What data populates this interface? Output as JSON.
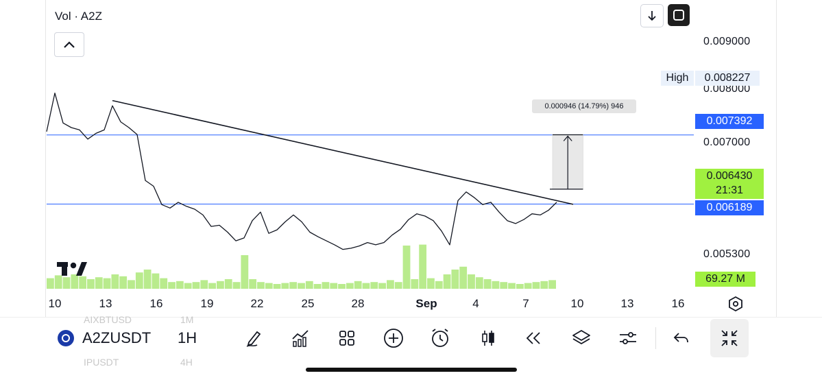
{
  "indicator": {
    "title": "Vol · A2Z"
  },
  "icons": {
    "collapse": "chevron-up-icon",
    "download": "arrow-down-icon",
    "fullscreen": "fullscreen-icon",
    "logo": "tradingview-logo-icon",
    "axis_settings": "axis-settings-icon"
  },
  "chart_data": {
    "type": "line",
    "symbol": "A2ZUSDT",
    "interval": "1H",
    "x_ticks": [
      "10",
      "13",
      "16",
      "19",
      "22",
      "25",
      "28",
      "Sep",
      "4",
      "7",
      "10",
      "13",
      "16"
    ],
    "y_ticks": [
      "0.009000",
      "0.008000",
      "0.007000",
      "0.005300"
    ],
    "ylim": [
      0.0051,
      0.0094
    ],
    "price_path": {
      "x": [
        0,
        1,
        2,
        3,
        4,
        5,
        6,
        7,
        8,
        9,
        10,
        11,
        12,
        13,
        14,
        15,
        16,
        17,
        18,
        19,
        20,
        21,
        22,
        23,
        24,
        25,
        26,
        27,
        28,
        29,
        30,
        31,
        32,
        33,
        34,
        35,
        36,
        37,
        38,
        39,
        40,
        41,
        42,
        43,
        44,
        45,
        46,
        47,
        48,
        49,
        50,
        51,
        52,
        53,
        54,
        55,
        56,
        57,
        58,
        59,
        60,
        61,
        62
      ],
      "y": [
        0.00745,
        0.00812,
        0.0076,
        0.00752,
        0.00748,
        0.00732,
        0.00742,
        0.00748,
        0.0079,
        0.00762,
        0.00752,
        0.0074,
        0.0066,
        0.0065,
        0.00618,
        0.00612,
        0.00622,
        0.00615,
        0.0061,
        0.006,
        0.0058,
        0.00582,
        0.0057,
        0.00555,
        0.0056,
        0.0059,
        0.00605,
        0.00568,
        0.00574,
        0.00588,
        0.006,
        0.00588,
        0.0057,
        0.00562,
        0.00555,
        0.00548,
        0.0054,
        0.00542,
        0.00546,
        0.00552,
        0.00548,
        0.00552,
        0.00565,
        0.00575,
        0.00592,
        0.00602,
        0.00598,
        0.0059,
        0.00572,
        0.00548,
        0.00625,
        0.0064,
        0.0063,
        0.00618,
        0.00622,
        0.00605,
        0.0059,
        0.00585,
        0.00592,
        0.00602,
        0.006,
        0.00608,
        0.00622
      ]
    },
    "volume_bars": [
      0.22,
      0.28,
      0.24,
      0.3,
      0.26,
      0.2,
      0.24,
      0.22,
      0.3,
      0.26,
      0.18,
      0.34,
      0.4,
      0.32,
      0.22,
      0.14,
      0.16,
      0.12,
      0.14,
      0.18,
      0.12,
      0.16,
      0.2,
      0.14,
      0.7,
      0.2,
      0.14,
      0.12,
      0.1,
      0.12,
      0.14,
      0.12,
      0.16,
      0.1,
      0.14,
      0.12,
      0.1,
      0.12,
      0.16,
      0.12,
      0.14,
      0.12,
      0.18,
      0.14,
      0.9,
      0.2,
      0.92,
      0.22,
      0.16,
      0.3,
      0.4,
      0.46,
      0.3,
      0.24,
      0.2,
      0.16,
      0.14,
      0.12,
      0.1,
      0.12,
      0.14,
      0.16,
      0.18
    ],
    "trendline": {
      "from": {
        "x": 8.0,
        "y": 0.00799
      },
      "to": {
        "x": 64.0,
        "y": 0.006185
      }
    },
    "horizontal_lines": [
      0.007392,
      0.006189
    ],
    "measure": {
      "from_y": 0.006449,
      "to_y": 0.007395,
      "label": "0.000946 (14.79%) 946"
    },
    "labels": {
      "high_text": "High",
      "high_value": "0.008227",
      "line_upper": "0.007392",
      "last_price": "0.006430",
      "countdown": "21:31",
      "line_lower": "0.006189",
      "volume": "69.27 M"
    },
    "grid": false,
    "colors": {
      "price": "#131722",
      "volume": "#b9eb8d",
      "hline": "#2962ff",
      "last_price_tag": "#a0f040",
      "high_tag_bg": "#eaf1fb"
    }
  },
  "toolbar": {
    "symbol": "A2ZUSDT",
    "interval": "1H",
    "ghost_top_left": "AIXBTUSD",
    "ghost_top_right": "1M",
    "ghost_bottom_left": "IPUSDT",
    "ghost_bottom_right": "4H",
    "tools": [
      "draw-pen-icon",
      "indicators-icon",
      "layout-grid-icon",
      "add-plus-icon",
      "alert-clock-icon",
      "candlestick-icon",
      "replay-icon",
      "layers-icon",
      "settings-sliders-icon",
      "undo-icon",
      "exit-fullscreen-icon"
    ]
  }
}
